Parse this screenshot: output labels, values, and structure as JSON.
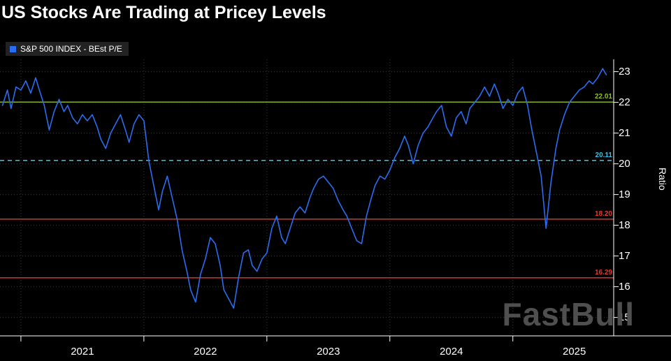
{
  "title": "US Stocks Are Trading at Pricey Levels",
  "legend": {
    "label": "S&P 500 INDEX - BEst P/E",
    "swatch_color": "#2b6df0"
  },
  "watermark": "FastBull",
  "colors": {
    "background": "#000000",
    "line": "#2b6df0",
    "grid": "#3c3c3c",
    "axis": "#ffffff",
    "green_line": "#8fc31f",
    "cyan_line": "#36c6e8",
    "red_line": "#e8392e"
  },
  "chart_data": {
    "type": "line",
    "title": "US Stocks Are Trading at Pricey Levels",
    "ylabel": "Ratio",
    "x_domain": [
      2020.83,
      2025.82
    ],
    "y_domain": [
      14.4,
      23.4
    ],
    "y_ticks": [
      15,
      16,
      17,
      18,
      19,
      20,
      21,
      22,
      23
    ],
    "x_ticks": [
      2021,
      2022,
      2023,
      2024,
      2025
    ],
    "x_tick_labels": [
      "2021",
      "2022",
      "2023",
      "2024",
      "2025"
    ],
    "grid": true,
    "legend_position": "top-left",
    "reference_lines": [
      {
        "value": 22.01,
        "label": "22.01",
        "color": "#8fc31f",
        "style": "solid"
      },
      {
        "value": 20.11,
        "label": "20.11",
        "color": "#36c6e8",
        "style": "dashed"
      },
      {
        "value": 18.2,
        "label": "18.20",
        "color": "#e8392e",
        "style": "solid"
      },
      {
        "value": 16.29,
        "label": "16.29",
        "color": "#e8392e",
        "style": "solid"
      }
    ],
    "series": [
      {
        "name": "S&P 500 INDEX - BEst P/E",
        "color": "#2b6df0",
        "x": [
          2020.85,
          2020.89,
          2020.92,
          2020.96,
          2021.0,
          2021.04,
          2021.08,
          2021.12,
          2021.15,
          2021.19,
          2021.23,
          2021.27,
          2021.31,
          2021.35,
          2021.38,
          2021.42,
          2021.46,
          2021.5,
          2021.54,
          2021.58,
          2021.62,
          2021.65,
          2021.69,
          2021.73,
          2021.77,
          2021.81,
          2021.85,
          2021.88,
          2021.92,
          2021.96,
          2022.0,
          2022.04,
          2022.08,
          2022.12,
          2022.15,
          2022.19,
          2022.23,
          2022.27,
          2022.31,
          2022.35,
          2022.38,
          2022.42,
          2022.46,
          2022.5,
          2022.54,
          2022.58,
          2022.62,
          2022.65,
          2022.69,
          2022.73,
          2022.77,
          2022.81,
          2022.85,
          2022.88,
          2022.92,
          2022.96,
          2023.0,
          2023.04,
          2023.08,
          2023.12,
          2023.15,
          2023.19,
          2023.23,
          2023.27,
          2023.31,
          2023.35,
          2023.38,
          2023.42,
          2023.46,
          2023.5,
          2023.54,
          2023.58,
          2023.62,
          2023.65,
          2023.69,
          2023.73,
          2023.77,
          2023.81,
          2023.85,
          2023.88,
          2023.92,
          2023.96,
          2024.0,
          2024.04,
          2024.08,
          2024.12,
          2024.15,
          2024.19,
          2024.23,
          2024.27,
          2024.31,
          2024.35,
          2024.38,
          2024.42,
          2024.46,
          2024.5,
          2024.54,
          2024.58,
          2024.62,
          2024.65,
          2024.69,
          2024.73,
          2024.77,
          2024.81,
          2024.85,
          2024.88,
          2024.92,
          2024.96,
          2025.0,
          2025.04,
          2025.08,
          2025.12,
          2025.15,
          2025.19,
          2025.23,
          2025.27,
          2025.31,
          2025.35,
          2025.38,
          2025.42,
          2025.46,
          2025.5,
          2025.54,
          2025.58,
          2025.62,
          2025.65,
          2025.69,
          2025.73,
          2025.76
        ],
        "y": [
          21.9,
          22.4,
          21.8,
          22.5,
          22.4,
          22.7,
          22.3,
          22.8,
          22.4,
          21.9,
          21.1,
          21.7,
          22.1,
          21.7,
          21.9,
          21.5,
          21.3,
          21.6,
          21.4,
          21.6,
          21.2,
          20.8,
          20.5,
          21.0,
          21.3,
          21.6,
          21.1,
          20.7,
          21.3,
          21.6,
          21.4,
          20.1,
          19.3,
          18.5,
          19.1,
          19.6,
          18.9,
          18.2,
          17.2,
          16.5,
          15.9,
          15.5,
          16.4,
          16.9,
          17.6,
          17.4,
          16.7,
          15.9,
          15.6,
          15.3,
          16.3,
          17.1,
          17.2,
          16.7,
          16.5,
          16.9,
          17.1,
          17.9,
          18.3,
          17.6,
          17.4,
          17.9,
          18.4,
          18.6,
          18.4,
          18.9,
          19.2,
          19.5,
          19.6,
          19.4,
          19.2,
          18.8,
          18.5,
          18.3,
          17.9,
          17.5,
          17.4,
          18.3,
          18.9,
          19.3,
          19.6,
          19.5,
          19.8,
          20.2,
          20.5,
          20.9,
          20.6,
          20.0,
          20.6,
          21.0,
          21.2,
          21.5,
          21.7,
          21.9,
          21.2,
          20.9,
          21.5,
          21.7,
          21.3,
          21.8,
          22.0,
          22.2,
          22.5,
          22.2,
          22.6,
          22.3,
          21.8,
          22.1,
          21.9,
          22.3,
          22.5,
          21.9,
          21.2,
          20.4,
          19.6,
          17.9,
          19.4,
          20.5,
          21.1,
          21.6,
          22.0,
          22.2,
          22.4,
          22.5,
          22.7,
          22.6,
          22.8,
          23.1,
          22.9
        ]
      }
    ]
  }
}
